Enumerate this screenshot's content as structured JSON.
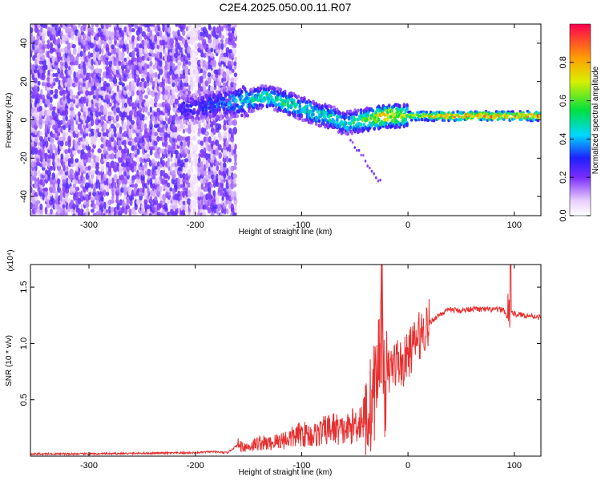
{
  "title": "C2E4.2025.050.00.11.R07",
  "chart_data": [
    {
      "type": "heatmap",
      "title": "C2E4.2025.050.00.11.R07",
      "xlabel": "Height of straight line (km)",
      "ylabel": "Frequency (Hz)",
      "xlim": [
        -355,
        125
      ],
      "ylim": [
        -50,
        50
      ],
      "x_ticks": [
        -300,
        -200,
        -100,
        0,
        100
      ],
      "y_ticks": [
        -40,
        -20,
        0,
        20,
        40
      ],
      "grid": false,
      "colorbar": {
        "label": "Normalized spectral amplitude",
        "range": [
          0,
          1
        ],
        "ticks": [
          "0.0",
          "0.2",
          "0.4",
          "0.6",
          "0.8"
        ]
      },
      "ridge": {
        "x": [
          -215,
          -200,
          -180,
          -165,
          -150,
          -135,
          -125,
          -115,
          -100,
          -85,
          -70,
          -60,
          -50,
          -40,
          -30,
          -20,
          -10,
          0,
          50,
          90,
          125
        ],
        "frequency": [
          6,
          6,
          8,
          9,
          10,
          12,
          11,
          9,
          6,
          3,
          1,
          -2,
          -1,
          0,
          1,
          2,
          2,
          2,
          2,
          2,
          2
        ],
        "amplitude": [
          0.3,
          0.3,
          0.35,
          0.4,
          0.5,
          0.55,
          0.5,
          0.55,
          0.5,
          0.55,
          0.5,
          0.5,
          0.55,
          0.6,
          0.75,
          0.85,
          0.75,
          0.65,
          0.9,
          0.85,
          0.9
        ]
      }
    },
    {
      "type": "line",
      "xlabel": "Height of straight line (km)",
      "ylabel": "SNR (10 * v/v)",
      "y_multiplier": "(x10⁴)",
      "xlim": [
        -355,
        125
      ],
      "ylim": [
        0,
        1.7
      ],
      "x_ticks": [
        -300,
        -200,
        -100,
        0,
        100
      ],
      "y_ticks": [
        "0.5",
        "1.0",
        "1.5"
      ],
      "grid": false,
      "series": [
        {
          "color": "#e83030",
          "x": [
            -355,
            -300,
            -250,
            -200,
            -185,
            -170,
            -160,
            -150,
            -140,
            -130,
            -120,
            -110,
            -100,
            -90,
            -80,
            -70,
            -60,
            -50,
            -40,
            -35,
            -30,
            -27,
            -25,
            -22,
            -20,
            -15,
            -10,
            -5,
            0,
            5,
            10,
            20,
            30,
            40,
            50,
            60,
            70,
            80,
            90,
            94,
            96,
            100,
            110,
            120,
            125
          ],
          "values": [
            0.02,
            0.02,
            0.025,
            0.03,
            0.04,
            0.03,
            0.1,
            0.08,
            0.12,
            0.11,
            0.14,
            0.16,
            0.2,
            0.18,
            0.22,
            0.25,
            0.22,
            0.28,
            0.35,
            0.45,
            0.65,
            0.9,
            1.15,
            0.6,
            0.7,
            0.8,
            0.85,
            0.8,
            0.9,
            0.98,
            1.06,
            1.18,
            1.26,
            1.3,
            1.29,
            1.31,
            1.3,
            1.3,
            1.3,
            1.22,
            1.3,
            1.26,
            1.25,
            1.24,
            1.23
          ]
        }
      ]
    }
  ]
}
